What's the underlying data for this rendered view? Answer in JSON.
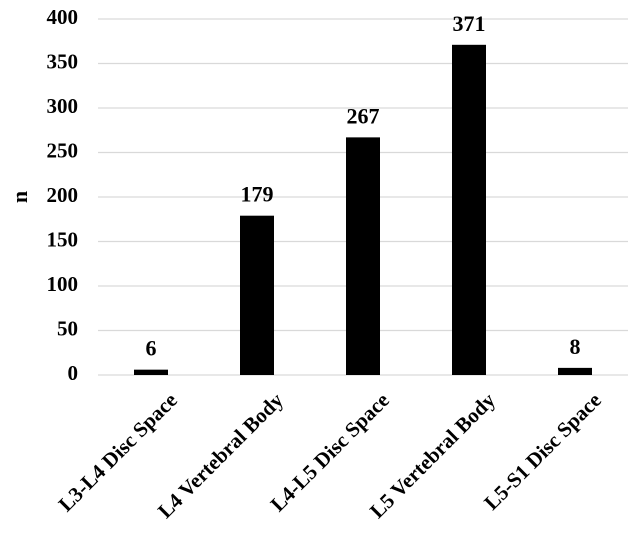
{
  "chart_data": {
    "type": "bar",
    "categories": [
      "L3-L4 Disc Space",
      "L4 Vertebral Body",
      "L4-L5 Disc Space",
      "L5 Vertebral Body",
      "L5-S1 Disc Space"
    ],
    "values": [
      6,
      179,
      267,
      371,
      8
    ],
    "data_labels": [
      "6",
      "179",
      "267",
      "371",
      "8"
    ],
    "ylabel": "n",
    "ylim": [
      0,
      400
    ],
    "yticks": [
      0,
      50,
      100,
      150,
      200,
      250,
      300,
      350,
      400
    ],
    "ytick_labels": [
      "0",
      "50",
      "100",
      "150",
      "200",
      "250",
      "300",
      "350",
      "400"
    ],
    "grid": true,
    "legend": "none",
    "bar_color": "#000000",
    "grid_color": "#d9d9d9"
  }
}
